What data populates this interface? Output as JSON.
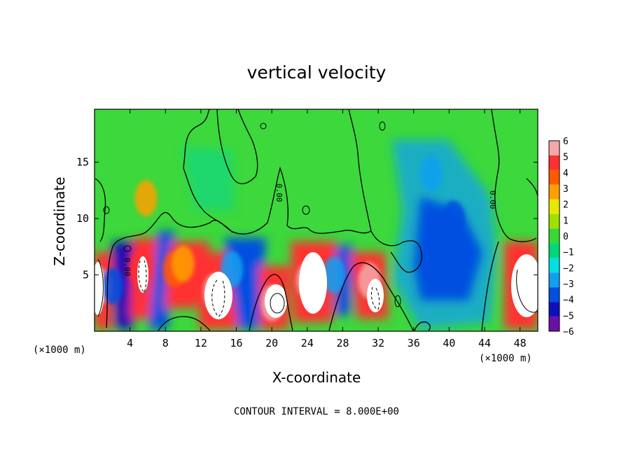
{
  "chart_data": {
    "type": "heatmap",
    "title": "vertical velocity",
    "xlabel": "X-coordinate",
    "ylabel": "Z-coordinate",
    "x_unit": "(×1000 m)",
    "y_unit": "(×1000 m)",
    "xlim": [
      0,
      50
    ],
    "ylim": [
      0,
      19.7
    ],
    "xticks": [
      4,
      8,
      12,
      16,
      20,
      24,
      28,
      32,
      36,
      40,
      44,
      48
    ],
    "yticks": [
      5,
      10,
      15
    ],
    "colorbar": {
      "levels": [
        6,
        5,
        4,
        3,
        2,
        1,
        0,
        -1,
        -2,
        -3,
        -4,
        -5,
        -6
      ],
      "colors": [
        "#f4a8a8",
        "#ff3030",
        "#ff5a00",
        "#ffa000",
        "#e8e800",
        "#a0e000",
        "#38d838",
        "#00d878",
        "#00e0e0",
        "#10a0f0",
        "#0050e0",
        "#1010b8",
        "#6a10a8"
      ]
    },
    "cells": [
      {
        "x": 0.6,
        "z": 4.0,
        "w": 6.5
      },
      {
        "x": 2.0,
        "z": 4.0,
        "w": -4.5
      },
      {
        "x": 5.2,
        "z": 5.5,
        "w": 5.0
      },
      {
        "x": 5.8,
        "z": 11.8,
        "w": 3.0
      },
      {
        "x": 9.0,
        "z": 5.5,
        "w": 3.5
      },
      {
        "x": 10.0,
        "z": 6.0,
        "w": 3.0
      },
      {
        "x": 13.5,
        "z": 3.5,
        "w": 6.5
      },
      {
        "x": 15.5,
        "z": 5.5,
        "w": -3.5
      },
      {
        "x": 20.0,
        "z": 2.5,
        "w": 6.5
      },
      {
        "x": 24.0,
        "z": 4.5,
        "w": 6.5
      },
      {
        "x": 27.0,
        "z": 5.0,
        "w": -3.0
      },
      {
        "x": 31.0,
        "z": 4.5,
        "w": 6.5
      },
      {
        "x": 38.5,
        "z": 6.0,
        "w": -4.5
      },
      {
        "x": 40.5,
        "z": 10.0,
        "w": -4.0
      },
      {
        "x": 38.0,
        "z": 14.0,
        "w": -3.0
      },
      {
        "x": 49.5,
        "z": 3.5,
        "w": 6.5
      }
    ],
    "contour_labels": [
      "0.00",
      "0.00",
      "0.00"
    ],
    "annotation": "CONTOUR INTERVAL = 8.000E+00"
  }
}
